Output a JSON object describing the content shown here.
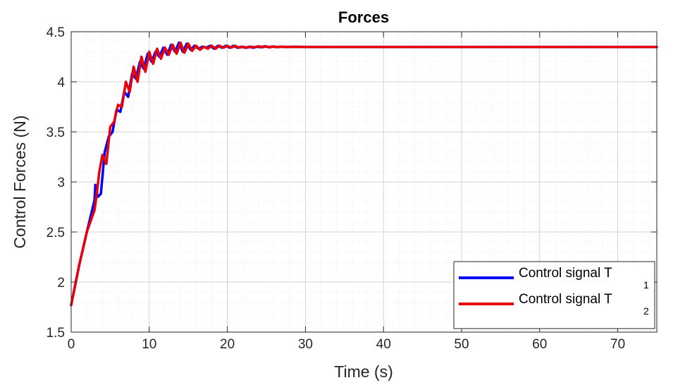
{
  "chart_data": {
    "type": "line",
    "title": "Forces",
    "xlabel": "Time (s)",
    "ylabel": "Control Forces (N)",
    "xlim": [
      0,
      75
    ],
    "ylim": [
      1.5,
      4.5
    ],
    "x_ticks": [
      0,
      10,
      20,
      30,
      40,
      50,
      60,
      70
    ],
    "x_tick_labels": [
      "0",
      "10",
      "20",
      "30",
      "40",
      "50",
      "60",
      "70"
    ],
    "y_ticks": [
      1.5,
      2,
      2.5,
      3,
      3.5,
      4,
      4.5
    ],
    "y_tick_labels": [
      "1.5",
      "2",
      "2.5",
      "3",
      "3.5",
      "4",
      "4.5"
    ],
    "grid": true,
    "minor_grid": true,
    "legend_position": "bottom-right",
    "series": [
      {
        "name": "Control signal T",
        "subscript": "1",
        "color": "#0000ff",
        "x": [
          0,
          1,
          2,
          3.0,
          3.1,
          3.4,
          3.8,
          4.3,
          4.8,
          5.3,
          5.8,
          6.3,
          6.8,
          7.3,
          7.8,
          8.3,
          8.8,
          9.3,
          9.8,
          10.3,
          10.8,
          11.3,
          11.8,
          12.3,
          12.8,
          13.3,
          13.8,
          14.3,
          14.8,
          15.3,
          15.8,
          16.3,
          16.8,
          17.3,
          17.8,
          18.3,
          18.8,
          19.3,
          19.8,
          20.3,
          20.8,
          21.3,
          21.8,
          22.3,
          22.8,
          23.3,
          23.8,
          24.3,
          24.8,
          25.3,
          25.8,
          26.3,
          26.8,
          27.5,
          28.5,
          30,
          35,
          40,
          50,
          60,
          75
        ],
        "y": [
          1.77,
          2.16,
          2.5,
          2.82,
          2.97,
          2.85,
          2.88,
          3.3,
          3.45,
          3.5,
          3.72,
          3.7,
          3.9,
          3.85,
          4.08,
          4.03,
          4.2,
          4.13,
          4.28,
          4.2,
          4.3,
          4.25,
          4.34,
          4.27,
          4.37,
          4.3,
          4.39,
          4.3,
          4.38,
          4.32,
          4.36,
          4.33,
          4.35,
          4.34,
          4.36,
          4.33,
          4.36,
          4.34,
          4.36,
          4.34,
          4.36,
          4.34,
          4.35,
          4.34,
          4.35,
          4.34,
          4.35,
          4.345,
          4.355,
          4.345,
          4.352,
          4.346,
          4.35,
          4.348,
          4.349,
          4.348,
          4.348,
          4.348,
          4.348,
          4.348,
          4.348
        ]
      },
      {
        "name": "Control signal T",
        "subscript": "2",
        "color": "#e8000b",
        "x": [
          0,
          1,
          2,
          3.0,
          3.3,
          3.6,
          4.0,
          4.5,
          5.0,
          5.5,
          6.0,
          6.5,
          7.0,
          7.5,
          8.0,
          8.5,
          9.0,
          9.5,
          10.0,
          10.5,
          11.0,
          11.5,
          12.0,
          12.5,
          13.0,
          13.5,
          14.0,
          14.5,
          15.0,
          15.5,
          16.0,
          16.5,
          17.0,
          17.5,
          18.0,
          18.5,
          19.0,
          19.5,
          20.0,
          20.5,
          21.0,
          21.5,
          22.0,
          22.5,
          23.0,
          23.5,
          24.0,
          24.5,
          25.0,
          25.5,
          26.0,
          26.5,
          27.0,
          27.8,
          28.8,
          30,
          35,
          40,
          50,
          60,
          75
        ],
        "y": [
          1.77,
          2.16,
          2.5,
          2.72,
          2.9,
          3.1,
          3.27,
          3.18,
          3.55,
          3.6,
          3.77,
          3.75,
          4.0,
          3.9,
          4.15,
          4.0,
          4.25,
          4.1,
          4.3,
          4.18,
          4.33,
          4.23,
          4.34,
          4.27,
          4.37,
          4.28,
          4.39,
          4.29,
          4.38,
          4.31,
          4.36,
          4.32,
          4.35,
          4.33,
          4.36,
          4.33,
          4.36,
          4.34,
          4.36,
          4.34,
          4.36,
          4.34,
          4.35,
          4.34,
          4.35,
          4.345,
          4.355,
          4.345,
          4.353,
          4.345,
          4.352,
          4.346,
          4.35,
          4.348,
          4.349,
          4.348,
          4.348,
          4.348,
          4.348,
          4.348,
          4.348
        ]
      }
    ]
  }
}
